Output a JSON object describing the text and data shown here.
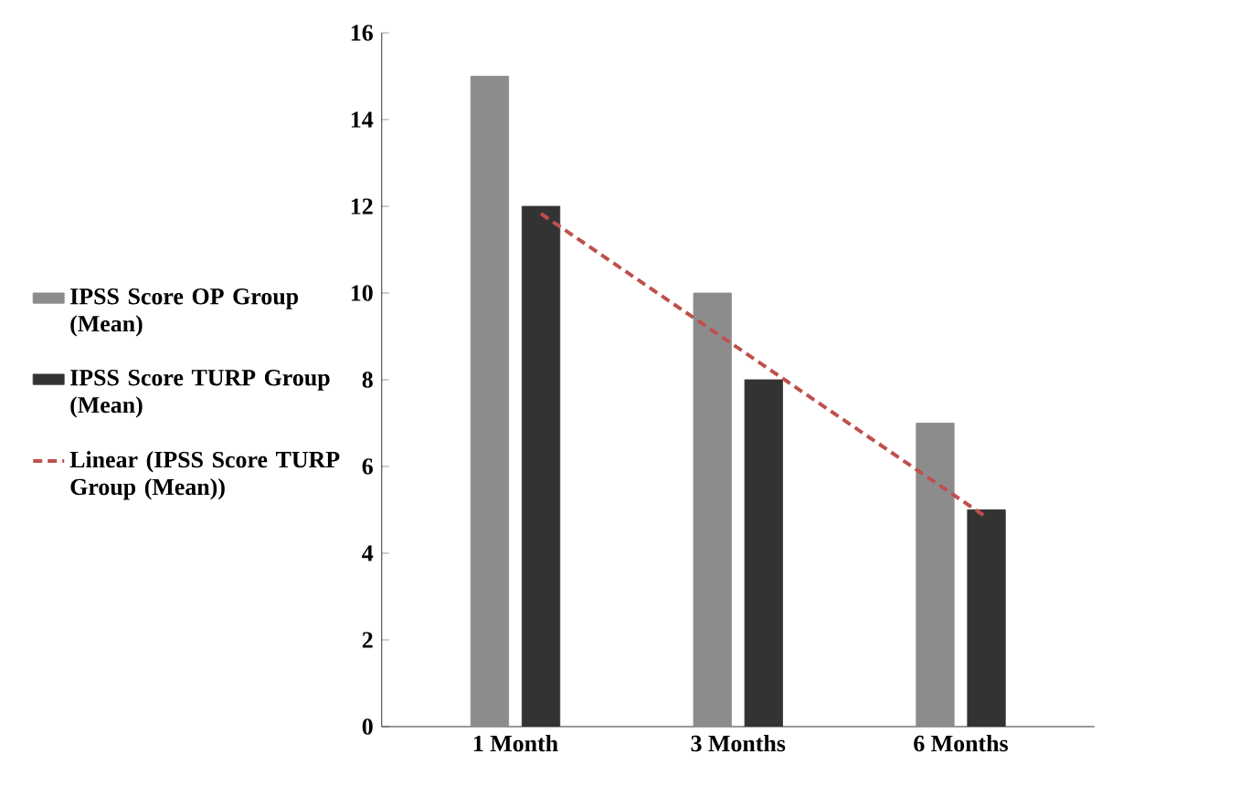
{
  "chart_data": {
    "type": "bar",
    "categories": [
      "1 Month",
      "3 Months",
      "6 Months"
    ],
    "series": [
      {
        "name": "IPSS Score OP Group (Mean)",
        "color": "#8c8c8c",
        "values": [
          15,
          10,
          7
        ]
      },
      {
        "name": "IPSS Score TURP Group (Mean)",
        "color": "#333333",
        "values": [
          12,
          8,
          5
        ]
      },
      {
        "name": "Linear (IPSS Score TURP Group (Mean))",
        "type": "line",
        "color": "#c0504d",
        "line_style": "dashed",
        "values": [
          11.83,
          8.33,
          4.83
        ]
      }
    ],
    "ylim": [
      0,
      16
    ],
    "yticks": [
      0,
      2,
      4,
      6,
      8,
      10,
      12,
      14,
      16
    ],
    "legend": "left"
  }
}
